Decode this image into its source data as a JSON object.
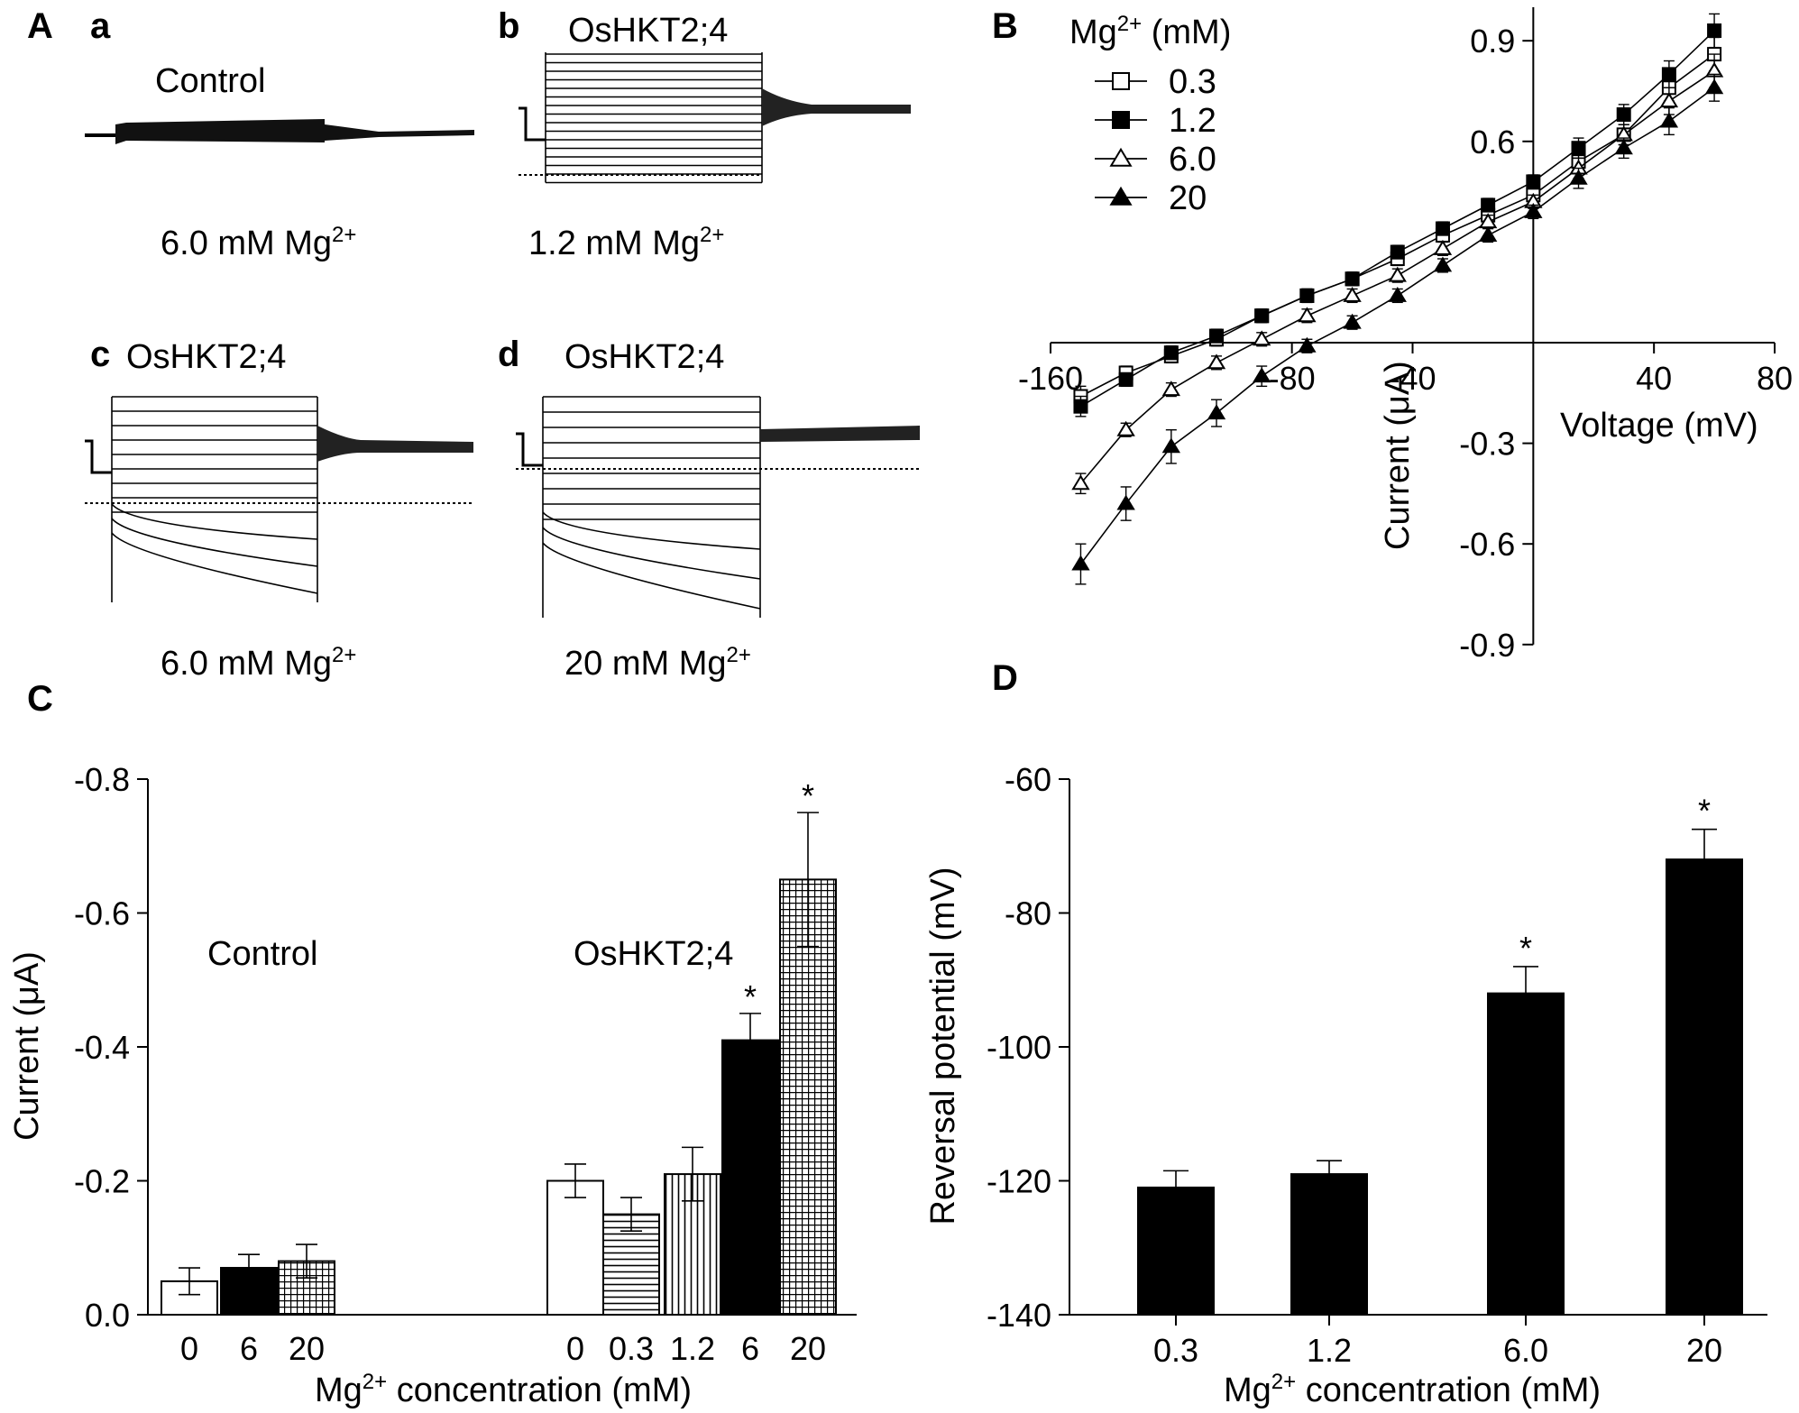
{
  "panel_labels": {
    "A": "A",
    "B": "B",
    "C": "C",
    "D": "D"
  },
  "panel_A": {
    "traces": [
      {
        "sub": "a",
        "title": "Control",
        "condition_value": "6.0 mM Mg",
        "sup": "2+"
      },
      {
        "sub": "b",
        "title": "OsHKT2;4",
        "condition_value": "1.2 mM Mg",
        "sup": "2+"
      },
      {
        "sub": "c",
        "title": "OsHKT2;4",
        "condition_value": "6.0 mM Mg",
        "sup": "2+"
      },
      {
        "sub": "d",
        "title": "OsHKT2;4",
        "condition_value": "20 mM Mg",
        "sup": "2+"
      }
    ]
  },
  "chart_data": [
    {
      "id": "B",
      "type": "line",
      "title": "",
      "xlabel": "Voltage (mV)",
      "ylabel": "Current (μA)",
      "xlim": [
        -160,
        80
      ],
      "ylim": [
        -0.9,
        1.0
      ],
      "xticks": [
        -160,
        -80,
        -40,
        40,
        80
      ],
      "xtick_labels": [
        "-160",
        "-80",
        "-40",
        "40",
        "80"
      ],
      "yticks": [
        0.9,
        0.6,
        -0.3,
        -0.6,
        -0.9
      ],
      "ytick_labels": [
        "0.9",
        "0.6",
        "-0.3",
        "-0.6",
        "-0.9"
      ],
      "legend_title": "Mg",
      "legend_title_sup": "2+",
      "legend_title_unit": " (mM)",
      "legend_position": "top-left",
      "x": [
        -150,
        -135,
        -120,
        -105,
        -90,
        -75,
        -60,
        -45,
        -30,
        -15,
        0,
        15,
        30,
        45,
        60
      ],
      "series": [
        {
          "name": "0.3",
          "marker": "square-open",
          "values": [
            -0.16,
            -0.09,
            -0.04,
            0.01,
            0.08,
            0.14,
            0.19,
            0.25,
            0.32,
            0.38,
            0.44,
            0.54,
            0.62,
            0.76,
            0.86
          ],
          "errors": [
            0.03,
            0.02,
            0.02,
            0.02,
            0.02,
            0.02,
            0.02,
            0.02,
            0.02,
            0.02,
            0.02,
            0.03,
            0.03,
            0.04,
            0.05
          ]
        },
        {
          "name": "1.2",
          "marker": "square-filled",
          "values": [
            -0.19,
            -0.11,
            -0.03,
            0.02,
            0.08,
            0.14,
            0.19,
            0.27,
            0.34,
            0.41,
            0.48,
            0.58,
            0.68,
            0.8,
            0.93
          ],
          "errors": [
            0.03,
            0.02,
            0.02,
            0.02,
            0.02,
            0.02,
            0.02,
            0.02,
            0.02,
            0.02,
            0.02,
            0.03,
            0.03,
            0.04,
            0.05
          ]
        },
        {
          "name": "6.0",
          "marker": "triangle-open",
          "values": [
            -0.42,
            -0.26,
            -0.14,
            -0.06,
            0.01,
            0.08,
            0.14,
            0.2,
            0.28,
            0.36,
            0.42,
            0.52,
            0.62,
            0.72,
            0.81
          ],
          "errors": [
            0.03,
            0.02,
            0.02,
            0.02,
            0.02,
            0.02,
            0.02,
            0.02,
            0.02,
            0.02,
            0.02,
            0.03,
            0.03,
            0.04,
            0.05
          ]
        },
        {
          "name": "20",
          "marker": "triangle-filled",
          "values": [
            -0.66,
            -0.48,
            -0.31,
            -0.21,
            -0.1,
            -0.01,
            0.06,
            0.14,
            0.23,
            0.32,
            0.39,
            0.49,
            0.58,
            0.66,
            0.76
          ],
          "errors": [
            0.06,
            0.05,
            0.05,
            0.04,
            0.03,
            0.02,
            0.02,
            0.02,
            0.02,
            0.02,
            0.02,
            0.03,
            0.03,
            0.04,
            0.04
          ]
        }
      ]
    },
    {
      "id": "C",
      "type": "bar",
      "xlabel_main": "Mg",
      "xlabel_sup": "2+",
      "xlabel_rest": " concentration (mM)",
      "ylabel": "Current (μA)",
      "ylim": [
        0,
        -0.8
      ],
      "yticks": [
        -0.8,
        -0.6,
        -0.4,
        -0.2,
        0.0
      ],
      "ytick_labels": [
        "-0.8",
        "-0.6",
        "-0.4",
        "-0.2",
        "0.0"
      ],
      "group_labels": [
        "Control",
        "OsHKT2;4"
      ],
      "bars": [
        {
          "group": "Control",
          "label": "0",
          "value": -0.05,
          "error": 0.02,
          "fill": "white",
          "star": false
        },
        {
          "group": "Control",
          "label": "6",
          "value": -0.07,
          "error": 0.02,
          "fill": "black",
          "star": false
        },
        {
          "group": "Control",
          "label": "20",
          "value": -0.08,
          "error": 0.025,
          "fill": "cross-hatch",
          "star": false
        },
        {
          "group": "OsHKT2;4",
          "label": "0",
          "value": -0.2,
          "error": 0.025,
          "fill": "white",
          "star": false
        },
        {
          "group": "OsHKT2;4",
          "label": "0.3",
          "value": -0.15,
          "error": 0.025,
          "fill": "horizontal-lines",
          "star": false
        },
        {
          "group": "OsHKT2;4",
          "label": "1.2",
          "value": -0.21,
          "error": 0.04,
          "fill": "vertical-lines",
          "star": false
        },
        {
          "group": "OsHKT2;4",
          "label": "6",
          "value": -0.41,
          "error": 0.04,
          "fill": "black",
          "star": true
        },
        {
          "group": "OsHKT2;4",
          "label": "20",
          "value": -0.65,
          "error": 0.1,
          "fill": "cross-hatch",
          "star": true
        }
      ],
      "star_label": "*"
    },
    {
      "id": "D",
      "type": "bar",
      "xlabel_main": "Mg",
      "xlabel_sup": "2+",
      "xlabel_rest": " concentration (mM)",
      "ylabel": "Reversal potential (mV)",
      "ylim": [
        -140,
        -60
      ],
      "yticks": [
        -60,
        -80,
        -100,
        -120,
        -140
      ],
      "ytick_labels": [
        "-60",
        "-80",
        "-100",
        "-120",
        "-140"
      ],
      "categories": [
        "0.3",
        "1.2",
        "6.0",
        "20"
      ],
      "values": [
        -121,
        -119,
        -92,
        -72
      ],
      "errors": [
        2.5,
        2.0,
        4.0,
        4.5
      ],
      "stars": [
        false,
        false,
        true,
        true
      ],
      "star_label": "*"
    }
  ]
}
